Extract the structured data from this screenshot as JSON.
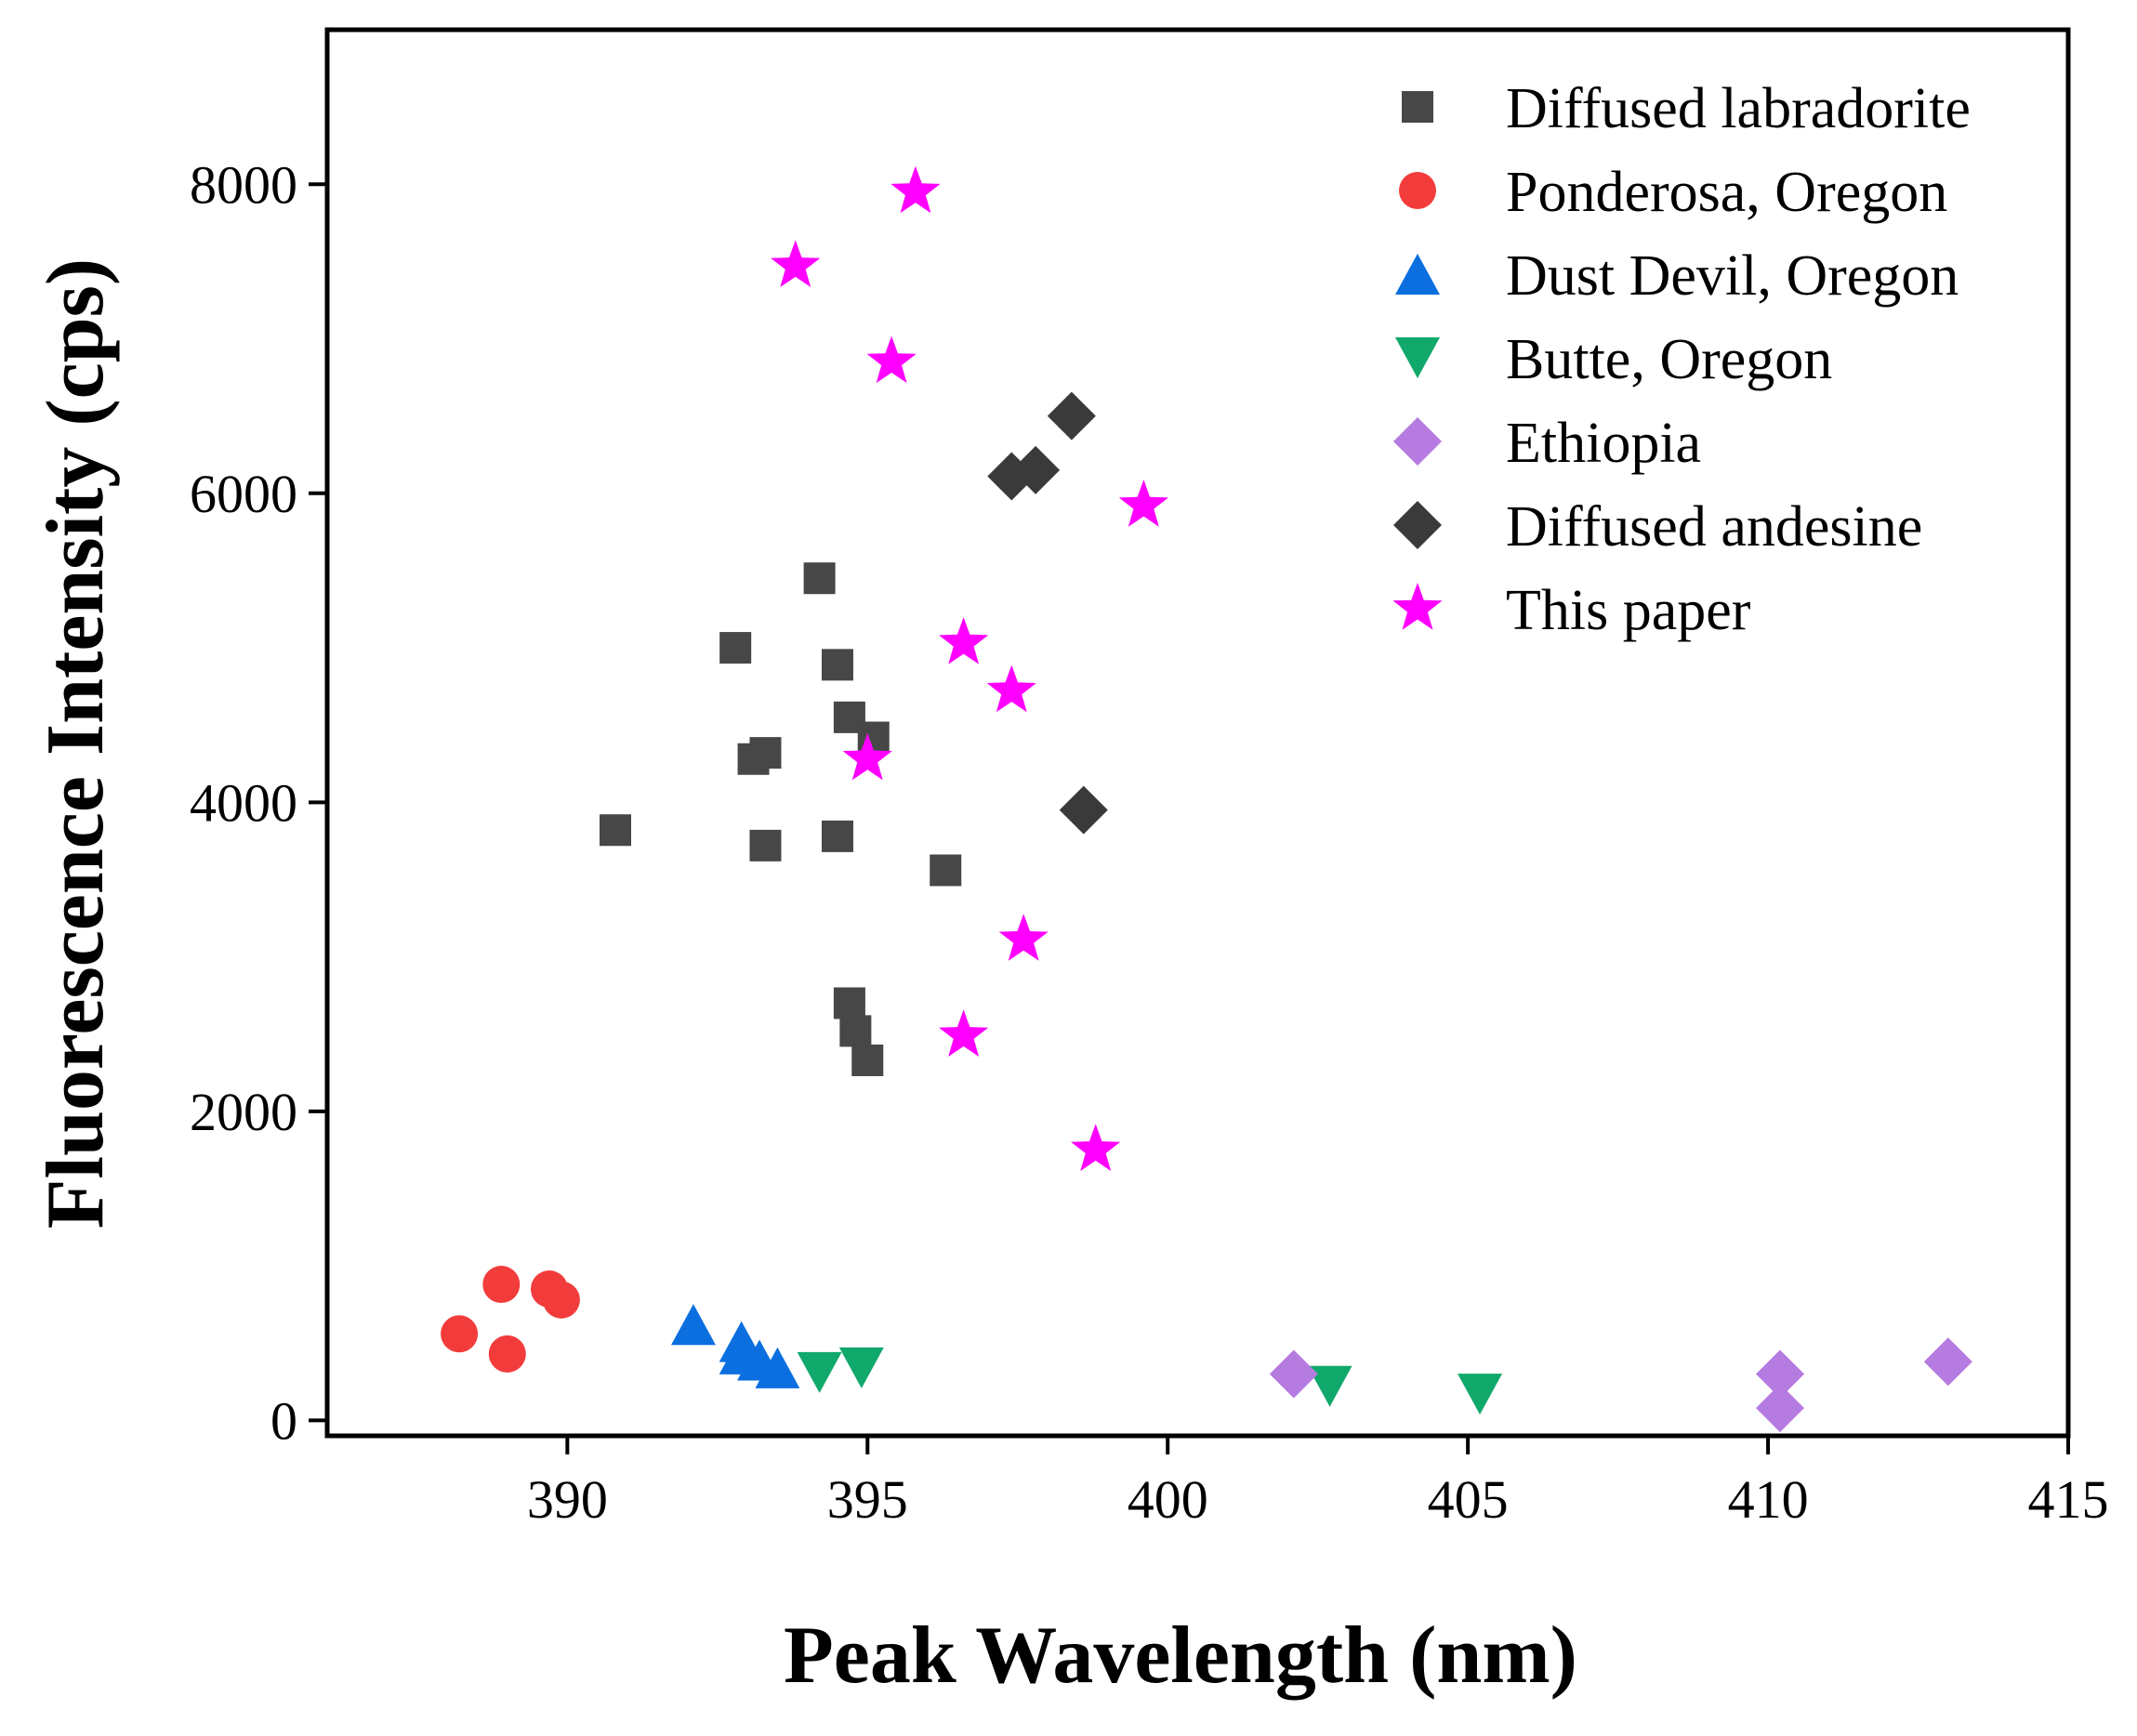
{
  "chart_data": {
    "type": "scatter",
    "title": "",
    "xlabel": "Peak Wavelength (nm)",
    "ylabel": "Fluorescence Intensity (cps)",
    "xlim": [
      386,
      415
    ],
    "ylim": [
      -100,
      9000
    ],
    "xticks": [
      390,
      395,
      400,
      405,
      410,
      415
    ],
    "yticks": [
      0,
      2000,
      4000,
      6000,
      8000
    ],
    "grid": false,
    "legend_position": "top-right",
    "series": [
      {
        "name": "Diffused labradorite",
        "marker": "square",
        "color": "#474747",
        "points": [
          {
            "x": 390.8,
            "y": 3820
          },
          {
            "x": 392.8,
            "y": 5000
          },
          {
            "x": 393.1,
            "y": 4280
          },
          {
            "x": 393.3,
            "y": 4320
          },
          {
            "x": 393.3,
            "y": 3720
          },
          {
            "x": 394.2,
            "y": 5450
          },
          {
            "x": 394.5,
            "y": 4890
          },
          {
            "x": 394.5,
            "y": 3780
          },
          {
            "x": 394.7,
            "y": 4550
          },
          {
            "x": 395.1,
            "y": 4420
          },
          {
            "x": 396.3,
            "y": 3560
          },
          {
            "x": 394.7,
            "y": 2700
          },
          {
            "x": 394.8,
            "y": 2520
          },
          {
            "x": 395.0,
            "y": 2330
          }
        ]
      },
      {
        "name": "Ponderosa, Oregon",
        "marker": "circle",
        "color": "#f23c3c",
        "points": [
          {
            "x": 388.9,
            "y": 880
          },
          {
            "x": 389.7,
            "y": 850
          },
          {
            "x": 389.9,
            "y": 780
          },
          {
            "x": 388.2,
            "y": 560
          },
          {
            "x": 389.0,
            "y": 430
          }
        ]
      },
      {
        "name": "Dust Devil, Oregon",
        "marker": "triangle-up",
        "color": "#0b6fe0",
        "points": [
          {
            "x": 392.1,
            "y": 620
          },
          {
            "x": 392.9,
            "y": 510
          },
          {
            "x": 392.9,
            "y": 430
          },
          {
            "x": 393.2,
            "y": 390
          },
          {
            "x": 393.5,
            "y": 340
          }
        ]
      },
      {
        "name": "Butte, Oregon",
        "marker": "triangle-down",
        "color": "#11a86b",
        "points": [
          {
            "x": 394.2,
            "y": 310
          },
          {
            "x": 394.9,
            "y": 340
          },
          {
            "x": 402.7,
            "y": 220
          },
          {
            "x": 405.2,
            "y": 170
          }
        ]
      },
      {
        "name": "Ethiopia",
        "marker": "diamond",
        "color": "#b67be0",
        "points": [
          {
            "x": 402.1,
            "y": 300
          },
          {
            "x": 410.2,
            "y": 300
          },
          {
            "x": 410.2,
            "y": 80
          },
          {
            "x": 413.0,
            "y": 380
          }
        ]
      },
      {
        "name": "Diffused andesine",
        "marker": "diamond",
        "color": "#3a3a3a",
        "points": [
          {
            "x": 398.4,
            "y": 6500
          },
          {
            "x": 397.4,
            "y": 6110
          },
          {
            "x": 397.8,
            "y": 6150
          },
          {
            "x": 398.6,
            "y": 3950
          }
        ]
      },
      {
        "name": "This paper",
        "marker": "star",
        "color": "#ff00ff",
        "points": [
          {
            "x": 395.8,
            "y": 7950
          },
          {
            "x": 393.8,
            "y": 7470
          },
          {
            "x": 395.4,
            "y": 6850
          },
          {
            "x": 399.6,
            "y": 5920
          },
          {
            "x": 396.6,
            "y": 5030
          },
          {
            "x": 397.4,
            "y": 4720
          },
          {
            "x": 395.0,
            "y": 4280
          },
          {
            "x": 397.6,
            "y": 3110
          },
          {
            "x": 396.6,
            "y": 2490
          },
          {
            "x": 398.8,
            "y": 1750
          }
        ]
      }
    ]
  }
}
